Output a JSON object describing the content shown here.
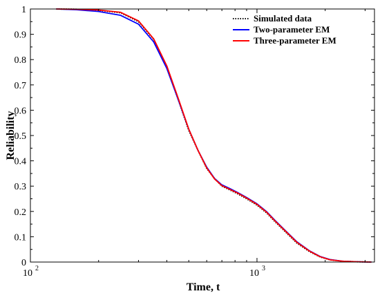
{
  "chart_data": {
    "type": "line",
    "title": "",
    "xlabel": "Time, t",
    "ylabel": "Reliability",
    "xscale": "log",
    "xlim": [
      100,
      3300
    ],
    "ylim": [
      0,
      1
    ],
    "grid": false,
    "legend_position": "top-right",
    "x_tick_labels": [
      {
        "value": 100,
        "base": "10",
        "exp": "2"
      },
      {
        "value": 1000,
        "base": "10",
        "exp": "3"
      }
    ],
    "y_tick_labels": [
      "0",
      "0.1",
      "0.2",
      "0.3",
      "0.4",
      "0.5",
      "0.6",
      "0.7",
      "0.8",
      "0.9",
      "1"
    ],
    "series": [
      {
        "name": "Simulated data",
        "color": "#000000",
        "style": "dotted",
        "x": [
          130,
          160,
          200,
          250,
          300,
          350,
          400,
          450,
          500,
          550,
          600,
          650,
          700,
          760,
          820,
          900,
          1000,
          1100,
          1200,
          1350,
          1500,
          1700,
          1900,
          2100,
          2400,
          2800,
          3200
        ],
        "y": [
          1.0,
          0.999,
          0.995,
          0.985,
          0.95,
          0.88,
          0.77,
          0.64,
          0.52,
          0.44,
          0.37,
          0.33,
          0.3,
          0.285,
          0.27,
          0.25,
          0.225,
          0.195,
          0.16,
          0.115,
          0.075,
          0.042,
          0.02,
          0.009,
          0.003,
          0.001,
          0.0
        ]
      },
      {
        "name": "Two-parameter EM",
        "color": "#0000ff",
        "style": "solid",
        "x": [
          130,
          160,
          200,
          250,
          300,
          350,
          400,
          450,
          500,
          550,
          600,
          650,
          700,
          760,
          820,
          900,
          1000,
          1100,
          1200,
          1350,
          1500,
          1700,
          1900,
          2100,
          2400,
          2800,
          3200
        ],
        "y": [
          1.0,
          0.997,
          0.99,
          0.975,
          0.94,
          0.87,
          0.765,
          0.64,
          0.525,
          0.44,
          0.375,
          0.33,
          0.305,
          0.29,
          0.275,
          0.255,
          0.23,
          0.2,
          0.165,
          0.12,
          0.08,
          0.045,
          0.022,
          0.01,
          0.003,
          0.001,
          0.0
        ]
      },
      {
        "name": "Three-parameter EM",
        "color": "#ff0000",
        "style": "solid",
        "x": [
          130,
          160,
          200,
          250,
          300,
          350,
          400,
          450,
          500,
          550,
          600,
          650,
          700,
          760,
          820,
          900,
          1000,
          1100,
          1200,
          1350,
          1500,
          1700,
          1900,
          2100,
          2400,
          2800,
          3200
        ],
        "y": [
          1.0,
          0.999,
          0.996,
          0.987,
          0.953,
          0.882,
          0.775,
          0.645,
          0.525,
          0.44,
          0.372,
          0.328,
          0.302,
          0.287,
          0.273,
          0.253,
          0.228,
          0.198,
          0.163,
          0.118,
          0.078,
          0.044,
          0.021,
          0.009,
          0.003,
          0.001,
          0.0
        ]
      }
    ]
  }
}
